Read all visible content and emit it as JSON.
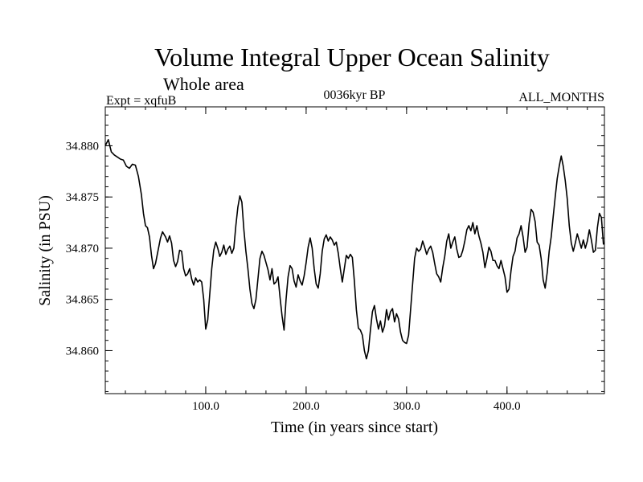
{
  "chart_data": {
    "type": "line",
    "title": "Volume Integral Upper Ocean Salinity",
    "subtitle": "Whole area",
    "experiment": "Expt = xqfuB",
    "period": "0036kyr BP",
    "months": "ALL_MONTHS",
    "xlabel": "Time (in years since start)",
    "ylabel": "Salinity (in PSU)",
    "xlim": [
      0,
      497
    ],
    "ylim": [
      34.8558,
      34.8838
    ],
    "x_ticks": [
      {
        "value": 100,
        "label": "100.0"
      },
      {
        "value": 200,
        "label": "200.0"
      },
      {
        "value": 300,
        "label": "300.0"
      },
      {
        "value": 400,
        "label": "400.0"
      }
    ],
    "x_minor_step": 20,
    "y_ticks": [
      {
        "value": 34.86,
        "label": "34.860"
      },
      {
        "value": 34.865,
        "label": "34.865"
      },
      {
        "value": 34.87,
        "label": "34.870"
      },
      {
        "value": 34.875,
        "label": "34.875"
      },
      {
        "value": 34.88,
        "label": "34.880"
      }
    ],
    "y_minor_step": 0.001,
    "series": [
      {
        "name": "salinity",
        "color": "#000000",
        "points": [
          [
            0,
            34.88
          ],
          [
            3,
            34.8806
          ],
          [
            6,
            34.8794
          ],
          [
            9,
            34.8791
          ],
          [
            12,
            34.8789
          ],
          [
            15,
            34.8787
          ],
          [
            18,
            34.8786
          ],
          [
            21,
            34.878
          ],
          [
            24,
            34.8778
          ],
          [
            27,
            34.8782
          ],
          [
            30,
            34.8781
          ],
          [
            33,
            34.877
          ],
          [
            36,
            34.8752
          ],
          [
            38,
            34.8734
          ],
          [
            40,
            34.8722
          ],
          [
            42,
            34.872
          ],
          [
            44,
            34.8711
          ],
          [
            46,
            34.8693
          ],
          [
            48,
            34.868
          ],
          [
            50,
            34.8685
          ],
          [
            53,
            34.87
          ],
          [
            55,
            34.871
          ],
          [
            57,
            34.8716
          ],
          [
            60,
            34.8711
          ],
          [
            62,
            34.8706
          ],
          [
            64,
            34.8712
          ],
          [
            66,
            34.8705
          ],
          [
            68,
            34.8688
          ],
          [
            70,
            34.8682
          ],
          [
            72,
            34.8687
          ],
          [
            74,
            34.8698
          ],
          [
            76,
            34.8697
          ],
          [
            78,
            34.868
          ],
          [
            80,
            34.8673
          ],
          [
            82,
            34.8675
          ],
          [
            84,
            34.868
          ],
          [
            86,
            34.867
          ],
          [
            88,
            34.8664
          ],
          [
            90,
            34.8671
          ],
          [
            92,
            34.8667
          ],
          [
            94,
            34.8669
          ],
          [
            96,
            34.8667
          ],
          [
            98,
            34.865
          ],
          [
            100,
            34.8621
          ],
          [
            102,
            34.863
          ],
          [
            104,
            34.8655
          ],
          [
            106,
            34.868
          ],
          [
            108,
            34.8698
          ],
          [
            110,
            34.8706
          ],
          [
            112,
            34.87
          ],
          [
            114,
            34.8692
          ],
          [
            116,
            34.8696
          ],
          [
            118,
            34.8703
          ],
          [
            120,
            34.8694
          ],
          [
            122,
            34.8699
          ],
          [
            124,
            34.8702
          ],
          [
            126,
            34.8695
          ],
          [
            128,
            34.87
          ],
          [
            130,
            34.8722
          ],
          [
            132,
            34.874
          ],
          [
            134,
            34.8751
          ],
          [
            136,
            34.8745
          ],
          [
            138,
            34.8718
          ],
          [
            140,
            34.8697
          ],
          [
            142,
            34.868
          ],
          [
            144,
            34.866
          ],
          [
            146,
            34.8646
          ],
          [
            148,
            34.8641
          ],
          [
            150,
            34.865
          ],
          [
            152,
            34.867
          ],
          [
            154,
            34.869
          ],
          [
            156,
            34.8697
          ],
          [
            158,
            34.8693
          ],
          [
            160,
            34.8686
          ],
          [
            162,
            34.8679
          ],
          [
            164,
            34.8669
          ],
          [
            166,
            34.868
          ],
          [
            168,
            34.8665
          ],
          [
            170,
            34.8667
          ],
          [
            172,
            34.8672
          ],
          [
            174,
            34.8652
          ],
          [
            176,
            34.8634
          ],
          [
            178,
            34.862
          ],
          [
            180,
            34.865
          ],
          [
            182,
            34.8672
          ],
          [
            184,
            34.8683
          ],
          [
            186,
            34.868
          ],
          [
            188,
            34.8668
          ],
          [
            190,
            34.8662
          ],
          [
            192,
            34.8674
          ],
          [
            194,
            34.8668
          ],
          [
            196,
            34.8664
          ],
          [
            198,
            34.8673
          ],
          [
            200,
            34.8686
          ],
          [
            202,
            34.8701
          ],
          [
            204,
            34.871
          ],
          [
            206,
            34.87
          ],
          [
            208,
            34.868
          ],
          [
            210,
            34.8665
          ],
          [
            212,
            34.8661
          ],
          [
            214,
            34.8675
          ],
          [
            216,
            34.8697
          ],
          [
            218,
            34.8709
          ],
          [
            220,
            34.8713
          ],
          [
            222,
            34.8707
          ],
          [
            224,
            34.8711
          ],
          [
            226,
            34.8708
          ],
          [
            228,
            34.8703
          ],
          [
            230,
            34.8706
          ],
          [
            232,
            34.8695
          ],
          [
            234,
            34.868
          ],
          [
            236,
            34.8667
          ],
          [
            238,
            34.868
          ],
          [
            240,
            34.8693
          ],
          [
            242,
            34.869
          ],
          [
            244,
            34.8694
          ],
          [
            246,
            34.8691
          ],
          [
            248,
            34.8668
          ],
          [
            250,
            34.864
          ],
          [
            252,
            34.8622
          ],
          [
            254,
            34.862
          ],
          [
            256,
            34.8615
          ],
          [
            258,
            34.86
          ],
          [
            260,
            34.8592
          ],
          [
            262,
            34.86
          ],
          [
            264,
            34.862
          ],
          [
            266,
            34.8638
          ],
          [
            268,
            34.8644
          ],
          [
            270,
            34.8631
          ],
          [
            272,
            34.8621
          ],
          [
            274,
            34.8629
          ],
          [
            276,
            34.8618
          ],
          [
            278,
            34.8624
          ],
          [
            280,
            34.864
          ],
          [
            282,
            34.863
          ],
          [
            284,
            34.8638
          ],
          [
            286,
            34.8641
          ],
          [
            288,
            34.8628
          ],
          [
            290,
            34.8636
          ],
          [
            292,
            34.8631
          ],
          [
            294,
            34.8618
          ],
          [
            296,
            34.861
          ],
          [
            298,
            34.8608
          ],
          [
            300,
            34.8607
          ],
          [
            302,
            34.8615
          ],
          [
            304,
            34.864
          ],
          [
            306,
            34.8665
          ],
          [
            308,
            34.869
          ],
          [
            310,
            34.87
          ],
          [
            312,
            34.8697
          ],
          [
            314,
            34.8699
          ],
          [
            316,
            34.8707
          ],
          [
            318,
            34.8701
          ],
          [
            320,
            34.8694
          ],
          [
            322,
            34.8699
          ],
          [
            324,
            34.8702
          ],
          [
            326,
            34.8696
          ],
          [
            328,
            34.8685
          ],
          [
            330,
            34.8675
          ],
          [
            332,
            34.8672
          ],
          [
            334,
            34.8667
          ],
          [
            336,
            34.8681
          ],
          [
            338,
            34.8692
          ],
          [
            340,
            34.8707
          ],
          [
            342,
            34.8714
          ],
          [
            344,
            34.87
          ],
          [
            346,
            34.8706
          ],
          [
            348,
            34.8711
          ],
          [
            350,
            34.8699
          ],
          [
            352,
            34.8691
          ],
          [
            354,
            34.8692
          ],
          [
            356,
            34.8698
          ],
          [
            358,
            34.8707
          ],
          [
            360,
            34.8718
          ],
          [
            362,
            34.8722
          ],
          [
            364,
            34.8717
          ],
          [
            366,
            34.8725
          ],
          [
            368,
            34.8714
          ],
          [
            370,
            34.8722
          ],
          [
            372,
            34.8712
          ],
          [
            374,
            34.8705
          ],
          [
            376,
            34.8696
          ],
          [
            378,
            34.8681
          ],
          [
            380,
            34.869
          ],
          [
            382,
            34.8701
          ],
          [
            384,
            34.8697
          ],
          [
            386,
            34.8688
          ],
          [
            388,
            34.8688
          ],
          [
            390,
            34.8683
          ],
          [
            392,
            34.868
          ],
          [
            394,
            34.8688
          ],
          [
            396,
            34.868
          ],
          [
            398,
            34.8672
          ],
          [
            400,
            34.8657
          ],
          [
            402,
            34.866
          ],
          [
            404,
            34.8678
          ],
          [
            406,
            34.8692
          ],
          [
            408,
            34.8697
          ],
          [
            410,
            34.871
          ],
          [
            412,
            34.8714
          ],
          [
            414,
            34.8722
          ],
          [
            416,
            34.8711
          ],
          [
            418,
            34.8696
          ],
          [
            420,
            34.8701
          ],
          [
            422,
            34.8724
          ],
          [
            424,
            34.8738
          ],
          [
            426,
            34.8735
          ],
          [
            428,
            34.8726
          ],
          [
            430,
            34.8706
          ],
          [
            432,
            34.8703
          ],
          [
            434,
            34.869
          ],
          [
            436,
            34.8669
          ],
          [
            438,
            34.8661
          ],
          [
            440,
            34.8676
          ],
          [
            442,
            34.8697
          ],
          [
            444,
            34.8711
          ],
          [
            446,
            34.8731
          ],
          [
            448,
            34.875
          ],
          [
            450,
            34.8768
          ],
          [
            452,
            34.878
          ],
          [
            454,
            34.879
          ],
          [
            456,
            34.878
          ],
          [
            458,
            34.8766
          ],
          [
            460,
            34.8748
          ],
          [
            462,
            34.8722
          ],
          [
            464,
            34.8705
          ],
          [
            466,
            34.8697
          ],
          [
            468,
            34.8705
          ],
          [
            470,
            34.8714
          ],
          [
            472,
            34.8707
          ],
          [
            474,
            34.87
          ],
          [
            476,
            34.8708
          ],
          [
            478,
            34.87
          ],
          [
            480,
            34.8707
          ],
          [
            482,
            34.8718
          ],
          [
            484,
            34.8708
          ],
          [
            486,
            34.8696
          ],
          [
            488,
            34.8698
          ],
          [
            490,
            34.872
          ],
          [
            492,
            34.8734
          ],
          [
            494,
            34.873
          ],
          [
            496,
            34.8704
          ],
          [
            497,
            34.8705
          ]
        ]
      }
    ]
  }
}
